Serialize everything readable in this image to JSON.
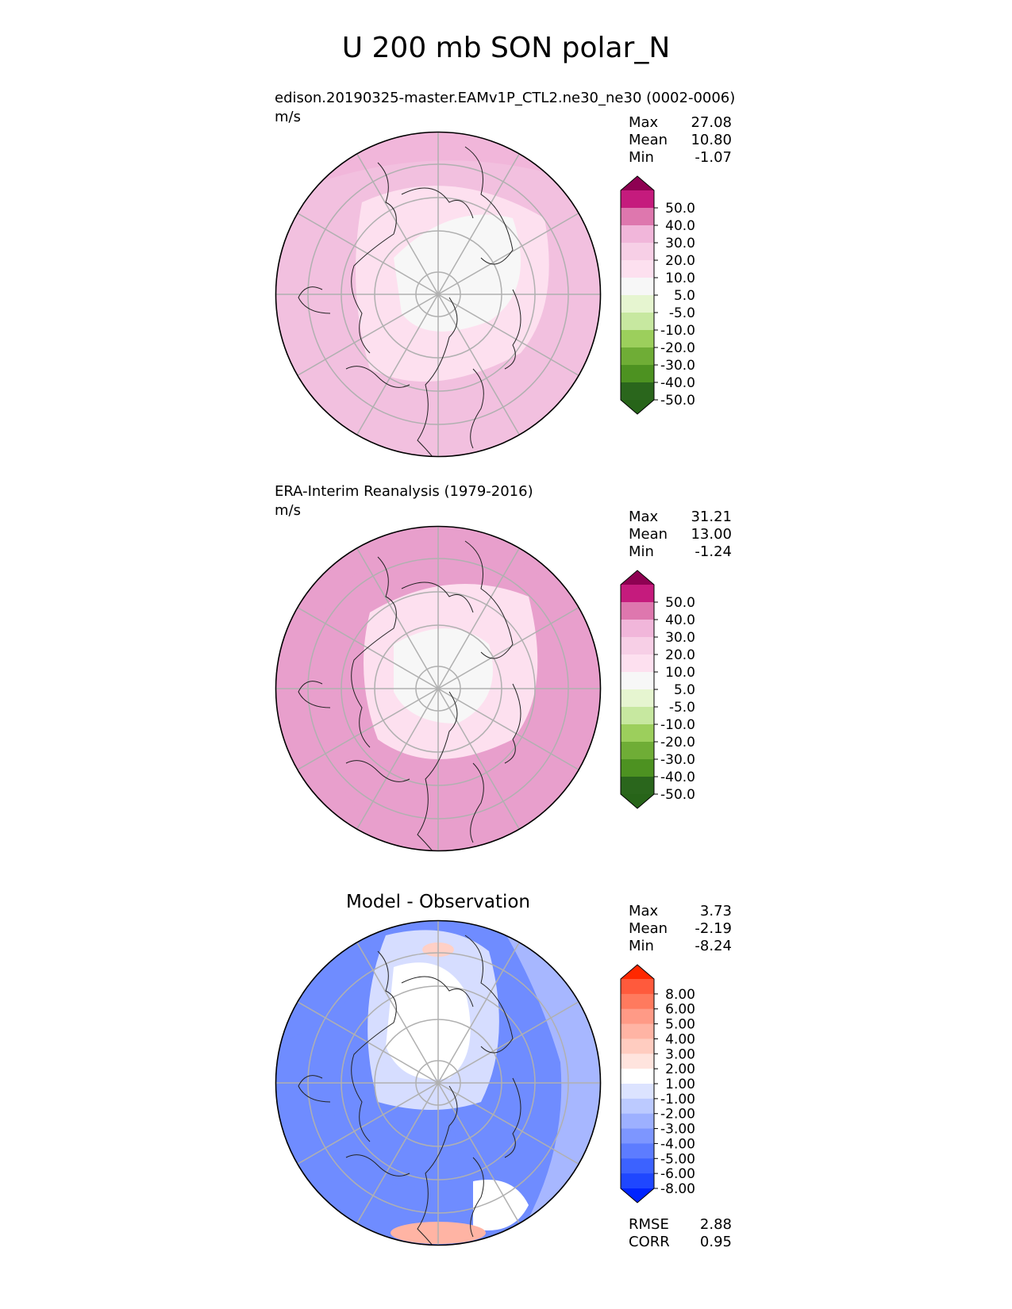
{
  "title": "U 200 mb SON polar_N",
  "panels": [
    {
      "id": "test",
      "title": "edison.20190325-master.EAMv1P_CTL2.ne30_ne30 (0002-0006)",
      "units": "m/s",
      "stats": [
        {
          "label": "Max",
          "value": "27.08"
        },
        {
          "label": "Mean",
          "value": "10.80"
        },
        {
          "label": "Min",
          "value": "-1.07"
        }
      ],
      "colorbar": {
        "ticks": [
          "50.0",
          "40.0",
          "30.0",
          "20.0",
          "10.0",
          "5.0",
          "-5.0",
          "-10.0",
          "-20.0",
          "-30.0",
          "-40.0",
          "-50.0"
        ],
        "colors": [
          "#8e0152",
          "#c51b7d",
          "#de77ae",
          "#f1b6da",
          "#f7cfe6",
          "#fde0ef",
          "#f7f7f7",
          "#e6f5d0",
          "#c7e8a0",
          "#9ccf5c",
          "#6fad36",
          "#4d9221",
          "#2a661c",
          "#276419"
        ]
      },
      "regions": [
        "#f2c0df",
        "#f1b6da",
        "#fde0ef",
        "#f7f7f7"
      ]
    },
    {
      "id": "reference",
      "title": "ERA-Interim Reanalysis (1979-2016)",
      "units": "m/s",
      "stats": [
        {
          "label": "Max",
          "value": "31.21"
        },
        {
          "label": "Mean",
          "value": "13.00"
        },
        {
          "label": "Min",
          "value": "-1.24"
        }
      ],
      "colorbar": {
        "ticks": [
          "50.0",
          "40.0",
          "30.0",
          "20.0",
          "10.0",
          "5.0",
          "-5.0",
          "-10.0",
          "-20.0",
          "-30.0",
          "-40.0",
          "-50.0"
        ],
        "colors": [
          "#8e0152",
          "#c51b7d",
          "#de77ae",
          "#f1b6da",
          "#f7cfe6",
          "#fde0ef",
          "#f7f7f7",
          "#e6f5d0",
          "#c7e8a0",
          "#9ccf5c",
          "#6fad36",
          "#4d9221",
          "#2a661c",
          "#276419"
        ]
      },
      "regions": [
        "#e89fcc",
        "#f2c0df",
        "#fde0ef",
        "#f7f7f7"
      ]
    },
    {
      "id": "diff",
      "title": "Model - Observation",
      "units": "",
      "stats": [
        {
          "label": "Max",
          "value": "3.73"
        },
        {
          "label": "Mean",
          "value": "-2.19"
        },
        {
          "label": "Min",
          "value": "-8.24"
        }
      ],
      "extra_stats": [
        {
          "label": "RMSE",
          "value": "2.88"
        },
        {
          "label": "CORR",
          "value": "0.95"
        }
      ],
      "colorbar": {
        "ticks": [
          "8.00",
          "6.00",
          "5.00",
          "4.00",
          "3.00",
          "2.00",
          "1.00",
          "-1.00",
          "-2.00",
          "-3.00",
          "-4.00",
          "-5.00",
          "-6.00",
          "-8.00"
        ],
        "colors": [
          "#ff2800",
          "#ff5a3c",
          "#ff7a5e",
          "#ff9a86",
          "#ffb4a4",
          "#ffccc0",
          "#ffe4de",
          "#ffffff",
          "#dce3ff",
          "#bccaff",
          "#9db0ff",
          "#7d96ff",
          "#5d7cff",
          "#3c62ff",
          "#1f47ff",
          "#0024ff"
        ]
      },
      "regions": [
        "#6f8cff",
        "#a7b7ff",
        "#d6ddff",
        "#ffffff"
      ]
    }
  ]
}
